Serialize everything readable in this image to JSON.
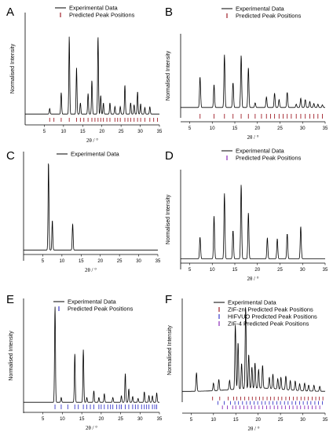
{
  "colors": {
    "experimental": "#000000",
    "predicted_primary": "#a0202a",
    "predicted_secondary": "#3a3ac8",
    "predicted_tertiary": "#8a2ab8"
  },
  "chart_data": [
    {
      "panel": "A",
      "type": "line",
      "xlabel": "2θ / °",
      "ylabel": "Normalised Intensity",
      "xlim": [
        0,
        35
      ],
      "xticks": [
        5,
        10,
        15,
        20,
        25,
        30,
        35
      ],
      "ylim": [
        0,
        1
      ],
      "legend": [
        "Experimental Data",
        "Predicted Peak Positions"
      ],
      "legend_position": "top-right",
      "series": [
        {
          "name": "Experimental Data",
          "peaks": [
            [
              6.4,
              0.06
            ],
            [
              9.4,
              0.23
            ],
            [
              11.5,
              0.83
            ],
            [
              13.4,
              0.5
            ],
            [
              14.4,
              0.12
            ],
            [
              16.4,
              0.22
            ],
            [
              17.4,
              0.36
            ],
            [
              19.0,
              0.83
            ],
            [
              19.7,
              0.2
            ],
            [
              20.4,
              0.12
            ],
            [
              22.1,
              0.12
            ],
            [
              23.4,
              0.08
            ],
            [
              24.8,
              0.08
            ],
            [
              26.0,
              0.31
            ],
            [
              27.5,
              0.12
            ],
            [
              28.4,
              0.1
            ],
            [
              29.3,
              0.24
            ],
            [
              30.1,
              0.11
            ],
            [
              31.2,
              0.07
            ],
            [
              32.5,
              0.08
            ]
          ]
        },
        {
          "name": "Predicted Peak Positions",
          "positions": [
            6.4,
            7.5,
            9.4,
            11.5,
            13.4,
            14.4,
            15.3,
            16.4,
            17.4,
            18.2,
            19.0,
            19.7,
            20.4,
            21.3,
            22.1,
            23.4,
            24.1,
            24.8,
            26.0,
            26.8,
            27.5,
            28.4,
            29.3,
            30.1,
            31.2,
            32.5,
            33.5,
            34.5
          ]
        }
      ]
    },
    {
      "panel": "B",
      "type": "line",
      "xlabel": "2θ / °",
      "ylabel": "Normalised Intensity",
      "xlim": [
        3,
        35
      ],
      "xticks": [
        5,
        10,
        15,
        20,
        25,
        30,
        35
      ],
      "ylim": [
        0,
        1
      ],
      "legend": [
        "Experimental Data",
        "Predicted Peak Positions"
      ],
      "legend_position": "top-right",
      "series": [
        {
          "name": "Experimental Data",
          "peaks": [
            [
              7.3,
              0.47
            ],
            [
              10.4,
              0.35
            ],
            [
              12.7,
              0.81
            ],
            [
              14.6,
              0.38
            ],
            [
              16.4,
              0.8
            ],
            [
              18.0,
              0.61
            ],
            [
              19.5,
              0.07
            ],
            [
              22.0,
              0.16
            ],
            [
              23.8,
              0.22
            ],
            [
              24.8,
              0.12
            ],
            [
              26.6,
              0.23
            ],
            [
              28.6,
              0.05
            ],
            [
              29.6,
              0.14
            ],
            [
              30.6,
              0.12
            ],
            [
              31.6,
              0.09
            ],
            [
              32.5,
              0.06
            ],
            [
              33.4,
              0.05
            ],
            [
              34.4,
              0.04
            ]
          ]
        },
        {
          "name": "Predicted Peak Positions",
          "positions": [
            7.3,
            10.4,
            12.7,
            14.6,
            16.4,
            18.0,
            19.5,
            20.9,
            22.0,
            22.9,
            23.8,
            24.8,
            25.7,
            26.6,
            27.5,
            28.6,
            29.6,
            30.6,
            31.6,
            32.5,
            33.4,
            34.4
          ]
        }
      ]
    },
    {
      "panel": "C",
      "type": "line",
      "xlabel": "2θ / °",
      "ylabel": "",
      "xlim": [
        0,
        35
      ],
      "xticks": [
        5,
        10,
        15,
        20,
        25,
        30,
        35
      ],
      "ylim": [
        0,
        1
      ],
      "legend": [
        "Experimental Data"
      ],
      "legend_position": "top-right",
      "series": [
        {
          "name": "Experimental Data",
          "peaks": [
            [
              6.5,
              0.98
            ],
            [
              7.5,
              0.33
            ],
            [
              12.8,
              0.29
            ]
          ]
        }
      ]
    },
    {
      "panel": "D",
      "type": "line",
      "xlabel": "2θ / °",
      "ylabel": "Normalised Intensity",
      "xlim": [
        3,
        35
      ],
      "xticks": [
        5,
        10,
        15,
        20,
        25,
        30,
        35
      ],
      "ylim": [
        0,
        1
      ],
      "legend": [
        "Experimental Data",
        "Predicted Peak Positions"
      ],
      "legend_position": "top-right",
      "series": [
        {
          "name": "Experimental Data",
          "peaks": [
            [
              7.3,
              0.27
            ],
            [
              10.4,
              0.53
            ],
            [
              12.7,
              0.81
            ],
            [
              14.6,
              0.35
            ],
            [
              16.4,
              0.92
            ],
            [
              18.0,
              0.57
            ],
            [
              22.2,
              0.26
            ],
            [
              24.4,
              0.25
            ],
            [
              26.6,
              0.31
            ],
            [
              29.6,
              0.4
            ]
          ]
        },
        {
          "name": "Predicted Peak Positions",
          "positions": []
        }
      ]
    },
    {
      "panel": "E",
      "type": "line",
      "xlabel": "2θ / °",
      "ylabel": "Normalised Intensity",
      "xlim": [
        0,
        35
      ],
      "xticks": [
        5,
        10,
        15,
        20,
        25,
        30,
        35
      ],
      "ylim": [
        0,
        1
      ],
      "legend": [
        "Experimental Data",
        "Predicted Peak Positions"
      ],
      "legend_position": "top-right",
      "series": [
        {
          "name": "Experimental Data",
          "peaks": [
            [
              8.1,
              1.0
            ],
            [
              9.7,
              0.05
            ],
            [
              13.2,
              0.51
            ],
            [
              15.4,
              0.55
            ],
            [
              16.3,
              0.05
            ],
            [
              18.1,
              0.12
            ],
            [
              19.4,
              0.05
            ],
            [
              20.8,
              0.09
            ],
            [
              23.0,
              0.05
            ],
            [
              25.2,
              0.07
            ],
            [
              26.2,
              0.3
            ],
            [
              27.1,
              0.14
            ],
            [
              28.1,
              0.06
            ],
            [
              29.5,
              0.04
            ],
            [
              31.1,
              0.11
            ],
            [
              32.3,
              0.07
            ],
            [
              33.2,
              0.07
            ],
            [
              34.3,
              0.1
            ]
          ]
        },
        {
          "name": "Predicted Peak Positions",
          "positions": [
            8.1,
            9.7,
            11.4,
            13.2,
            14.1,
            15.4,
            16.3,
            17.2,
            18.1,
            19.4,
            20.0,
            20.8,
            21.7,
            22.4,
            23.0,
            24.0,
            24.7,
            25.2,
            26.2,
            27.1,
            28.1,
            28.8,
            29.5,
            30.4,
            31.1,
            31.7,
            32.3,
            33.2,
            33.8,
            34.3
          ]
        }
      ]
    },
    {
      "panel": "F",
      "type": "line",
      "xlabel": "2θ / °",
      "ylabel": "Normalised Intensity",
      "xlim": [
        3,
        35
      ],
      "xticks": [
        5,
        10,
        15,
        20,
        25,
        30,
        35
      ],
      "ylim": [
        0,
        1
      ],
      "legend": [
        "Experimental Data",
        "ZIF-zni Predicted Peak Positions",
        "HIFVUO Predicted Peak Positions",
        "ZIF-4 Predicted Peak Positions"
      ],
      "legend_position": "top-right",
      "series": [
        {
          "name": "Experimental Data",
          "peaks": [
            [
              6.2,
              0.22
            ],
            [
              10.0,
              0.09
            ],
            [
              11.2,
              0.13
            ],
            [
              13.6,
              0.11
            ],
            [
              14.9,
              0.76
            ],
            [
              15.5,
              0.55
            ],
            [
              16.3,
              0.3
            ],
            [
              17.2,
              0.96
            ],
            [
              17.9,
              0.4
            ],
            [
              18.6,
              0.25
            ],
            [
              19.3,
              0.3
            ],
            [
              20.1,
              0.22
            ],
            [
              21.0,
              0.27
            ],
            [
              22.5,
              0.13
            ],
            [
              23.3,
              0.17
            ],
            [
              24.4,
              0.12
            ],
            [
              25.1,
              0.14
            ],
            [
              26.2,
              0.16
            ],
            [
              27.2,
              0.11
            ],
            [
              28.3,
              0.11
            ],
            [
              29.3,
              0.08
            ],
            [
              30.4,
              0.09
            ],
            [
              31.3,
              0.07
            ],
            [
              32.5,
              0.07
            ],
            [
              33.8,
              0.06
            ]
          ]
        },
        {
          "name": "ZIF-zni Predicted Peak Positions",
          "positions": [
            9.8,
            11.4,
            13.3,
            14.5,
            15.2,
            16.1,
            17.0,
            17.9,
            18.7,
            19.5,
            20.3,
            21.1,
            22.0,
            22.8,
            23.6,
            24.5,
            25.3,
            26.2,
            27.0,
            27.9,
            28.7,
            29.6,
            30.4,
            31.2,
            32.1,
            32.9,
            33.7,
            34.5
          ]
        },
        {
          "name": "HIFVUO Predicted Peak Positions",
          "positions": [
            11.0,
            12.4,
            13.8,
            14.8,
            15.6,
            16.5,
            17.4,
            18.2,
            19.1,
            19.9,
            20.8,
            21.6,
            22.5,
            23.3,
            24.2,
            25.0,
            25.9,
            26.7,
            27.6,
            28.4,
            29.3,
            30.1,
            31.0,
            31.8,
            32.7,
            33.5,
            34.4
          ]
        },
        {
          "name": "ZIF-4 Predicted Peak Positions",
          "positions": [
            12.0,
            13.1,
            14.3,
            15.0,
            15.9,
            16.8,
            17.6,
            18.5,
            19.3,
            20.2,
            21.0,
            21.9,
            22.7,
            23.6,
            24.4,
            25.3,
            26.1,
            27.0,
            27.8,
            28.7,
            29.5,
            30.4,
            31.2,
            32.1,
            32.9,
            33.8
          ]
        }
      ]
    }
  ]
}
